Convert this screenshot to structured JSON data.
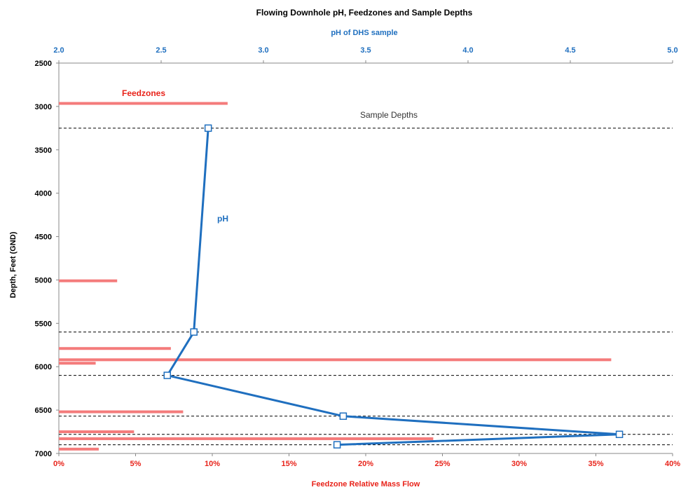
{
  "chart_data": {
    "type": "line",
    "title": "Flowing Downhole pH, Feedzones and Sample Depths",
    "top_axis": {
      "label": "pH of DHS sample",
      "range": [
        2.0,
        5.0
      ],
      "ticks": [
        "2.0",
        "2.5",
        "3.0",
        "3.5",
        "4.0",
        "4.5",
        "5.0"
      ]
    },
    "left_axis": {
      "label": "Depth, Feet (GND)",
      "range": [
        2500,
        7000
      ],
      "inverted": true,
      "ticks": [
        "2500",
        "3000",
        "3500",
        "4000",
        "4500",
        "5000",
        "5500",
        "6000",
        "6500",
        "7000"
      ]
    },
    "bottom_axis": {
      "label": "Feedzone Relative Mass Flow",
      "range": [
        0,
        40
      ],
      "ticks": [
        "0%",
        "5%",
        "10%",
        "15%",
        "20%",
        "25%",
        "30%",
        "35%",
        "40%"
      ]
    },
    "sample_depths": {
      "label": "Sample Depths",
      "depths": [
        3250,
        5600,
        6100,
        6570,
        6780,
        6900
      ]
    },
    "ph_series": {
      "name": "pH",
      "points": [
        {
          "ph": 2.73,
          "depth": 3250
        },
        {
          "ph": 2.66,
          "depth": 5600
        },
        {
          "ph": 2.53,
          "depth": 6100
        },
        {
          "ph": 3.39,
          "depth": 6570
        },
        {
          "ph": 4.74,
          "depth": 6780
        },
        {
          "ph": 3.36,
          "depth": 6900
        }
      ]
    },
    "feedzones": {
      "label": "Feedzones",
      "bars": [
        {
          "depth": 2965,
          "flow_pct": 11.0
        },
        {
          "depth": 5010,
          "flow_pct": 3.8
        },
        {
          "depth": 5790,
          "flow_pct": 7.3
        },
        {
          "depth": 5920,
          "flow_pct": 36.0
        },
        {
          "depth": 5960,
          "flow_pct": 2.4
        },
        {
          "depth": 6520,
          "flow_pct": 8.1
        },
        {
          "depth": 6750,
          "flow_pct": 4.9
        },
        {
          "depth": 6830,
          "flow_pct": 24.4
        },
        {
          "depth": 6950,
          "flow_pct": 2.6
        }
      ]
    },
    "colors": {
      "ph_line": "#1f6fbf",
      "feedzone": "#f47b7b",
      "feedzone_text": "#e8231a",
      "sample_line": "#000000"
    },
    "grid": false
  }
}
